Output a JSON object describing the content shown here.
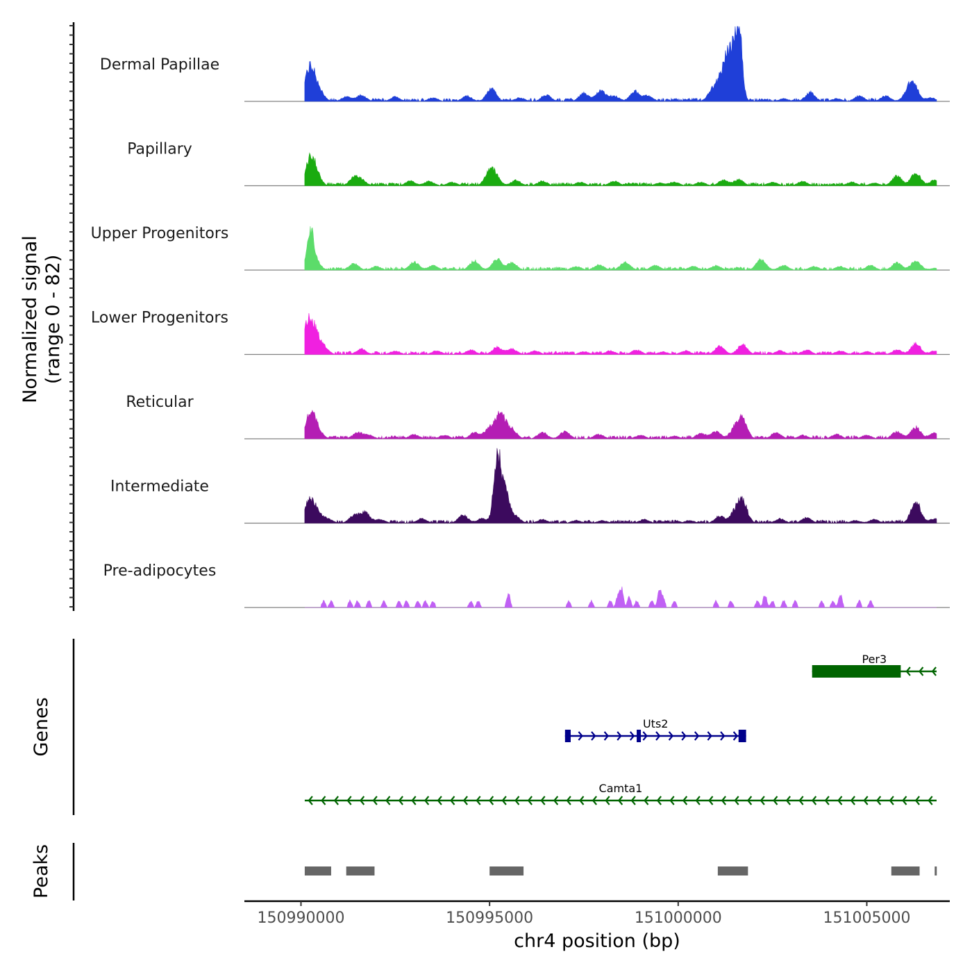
{
  "colors": {
    "Dermal Papillae": "#1f3fd8",
    "Papillary": "#1aab10",
    "Upper Progenitors": "#5cdc6a",
    "Lower Progenitors": "#f020e0",
    "Reticular": "#b41db4",
    "Intermediate": "#3c0a5e",
    "Pre-adipocytes": "#c060f4",
    "gene_plus": "#00008b",
    "gene_minus": "#006400",
    "peak": "#666666",
    "baseline": "#808080"
  },
  "chart_data": {
    "type": "area",
    "title": "",
    "xlabel": "chr4 position (bp)",
    "ylabel": "Normalized signal\n(range 0 - 82)",
    "ylabel_lines": [
      "Normalized signal",
      "(range 0 - 82)"
    ],
    "ylim": [
      0,
      82
    ],
    "xlim": [
      150988500,
      151007200
    ],
    "xticks": [
      150990000,
      150995000,
      151000000,
      151005000
    ],
    "xtick_labels": [
      "150990000",
      "150995000",
      "151000000",
      "151005000"
    ],
    "region_start": 150990100,
    "region_end": 151006850,
    "tracks": [
      {
        "name": "Dermal Papillae",
        "peaks": [
          [
            150990150,
            18
          ],
          [
            150990300,
            26
          ],
          [
            150990500,
            8
          ],
          [
            150991200,
            5
          ],
          [
            150991600,
            7
          ],
          [
            150992500,
            5
          ],
          [
            150993500,
            4
          ],
          [
            150994400,
            6
          ],
          [
            150995050,
            14
          ],
          [
            150995800,
            4
          ],
          [
            150996500,
            7
          ],
          [
            150997500,
            9
          ],
          [
            150997950,
            12
          ],
          [
            150998300,
            6
          ],
          [
            150998850,
            11
          ],
          [
            150999200,
            6
          ],
          [
            151000900,
            10
          ],
          [
            151001100,
            14
          ],
          [
            151001250,
            22
          ],
          [
            151001600,
            80
          ],
          [
            151001400,
            40
          ],
          [
            151002800,
            3
          ],
          [
            151003500,
            10
          ],
          [
            151004200,
            3
          ],
          [
            151004800,
            6
          ],
          [
            151005500,
            6
          ],
          [
            151006100,
            10
          ],
          [
            151006250,
            16
          ],
          [
            151006700,
            4
          ]
        ]
      },
      {
        "name": "Papillary",
        "peaks": [
          [
            150990250,
            28
          ],
          [
            150990400,
            10
          ],
          [
            150991400,
            8
          ],
          [
            150991600,
            6
          ],
          [
            150992900,
            5
          ],
          [
            150993400,
            5
          ],
          [
            150994000,
            4
          ],
          [
            150995000,
            14
          ],
          [
            150995150,
            9
          ],
          [
            150995700,
            6
          ],
          [
            150996400,
            5
          ],
          [
            150997400,
            4
          ],
          [
            150998300,
            5
          ],
          [
            150999500,
            3
          ],
          [
            150999900,
            4
          ],
          [
            151000600,
            4
          ],
          [
            151001200,
            6
          ],
          [
            151001600,
            7
          ],
          [
            151002500,
            4
          ],
          [
            151003300,
            5
          ],
          [
            151004600,
            4
          ],
          [
            151005200,
            3
          ],
          [
            151005800,
            11
          ],
          [
            151006300,
            14
          ],
          [
            151006800,
            6
          ]
        ]
      },
      {
        "name": "Upper Progenitors",
        "peaks": [
          [
            150990250,
            42
          ],
          [
            150990400,
            8
          ],
          [
            150991400,
            7
          ],
          [
            150992000,
            4
          ],
          [
            150993000,
            9
          ],
          [
            150993500,
            5
          ],
          [
            150994600,
            10
          ],
          [
            150995200,
            12
          ],
          [
            150995600,
            8
          ],
          [
            150997300,
            4
          ],
          [
            150997900,
            6
          ],
          [
            150998600,
            9
          ],
          [
            150999400,
            5
          ],
          [
            151000400,
            4
          ],
          [
            151001000,
            5
          ],
          [
            151002200,
            12
          ],
          [
            151002800,
            5
          ],
          [
            151003600,
            4
          ],
          [
            151004300,
            4
          ],
          [
            151005100,
            5
          ],
          [
            151005800,
            8
          ],
          [
            151006300,
            10
          ],
          [
            151006800,
            2
          ]
        ]
      },
      {
        "name": "Lower Progenitors",
        "peaks": [
          [
            150990150,
            30
          ],
          [
            150990350,
            24
          ],
          [
            150990600,
            8
          ],
          [
            150991600,
            6
          ],
          [
            150992500,
            4
          ],
          [
            150993600,
            4
          ],
          [
            150994500,
            5
          ],
          [
            150995200,
            8
          ],
          [
            150995600,
            6
          ],
          [
            150996200,
            4
          ],
          [
            150997500,
            3
          ],
          [
            150998200,
            4
          ],
          [
            150998900,
            5
          ],
          [
            150999600,
            3
          ],
          [
            151000200,
            4
          ],
          [
            151001100,
            9
          ],
          [
            151001700,
            11
          ],
          [
            151002700,
            4
          ],
          [
            151003400,
            5
          ],
          [
            151004300,
            4
          ],
          [
            151005000,
            3
          ],
          [
            151005800,
            5
          ],
          [
            151006300,
            12
          ],
          [
            151006800,
            4
          ]
        ]
      },
      {
        "name": "Reticular",
        "peaks": [
          [
            150990250,
            28
          ],
          [
            150990450,
            8
          ],
          [
            150991500,
            7
          ],
          [
            150991800,
            4
          ],
          [
            150993000,
            5
          ],
          [
            150993800,
            4
          ],
          [
            150994600,
            7
          ],
          [
            150995000,
            12
          ],
          [
            150995300,
            28
          ],
          [
            150995600,
            10
          ],
          [
            150996400,
            7
          ],
          [
            150997000,
            8
          ],
          [
            150997900,
            5
          ],
          [
            150999000,
            4
          ],
          [
            150999900,
            3
          ],
          [
            151000600,
            6
          ],
          [
            151001000,
            8
          ],
          [
            151001700,
            20
          ],
          [
            151001500,
            10
          ],
          [
            151002600,
            7
          ],
          [
            151003300,
            4
          ],
          [
            151004200,
            5
          ],
          [
            151005000,
            4
          ],
          [
            151005800,
            8
          ],
          [
            151006300,
            13
          ],
          [
            151006800,
            7
          ]
        ]
      },
      {
        "name": "Intermediate",
        "peaks": [
          [
            150990200,
            22
          ],
          [
            150990400,
            13
          ],
          [
            150990700,
            5
          ],
          [
            150991400,
            8
          ],
          [
            150991700,
            12
          ],
          [
            150992100,
            4
          ],
          [
            150993200,
            5
          ],
          [
            150994300,
            9
          ],
          [
            150994800,
            5
          ],
          [
            150995200,
            70
          ],
          [
            150995400,
            35
          ],
          [
            150995700,
            6
          ],
          [
            150996400,
            4
          ],
          [
            150997300,
            3
          ],
          [
            150998000,
            3
          ],
          [
            150999100,
            4
          ],
          [
            151000300,
            3
          ],
          [
            151001100,
            8
          ],
          [
            151001700,
            24
          ],
          [
            151001500,
            10
          ],
          [
            151002700,
            5
          ],
          [
            151003400,
            6
          ],
          [
            151004700,
            3
          ],
          [
            151005200,
            4
          ],
          [
            151006300,
            24
          ],
          [
            151006800,
            5
          ]
        ]
      },
      {
        "name": "Pre-adipocytes",
        "peaks": [
          [
            150990600,
            8
          ],
          [
            150990800,
            8
          ],
          [
            150991300,
            8
          ],
          [
            150991500,
            8
          ],
          [
            150991800,
            8
          ],
          [
            150992200,
            8
          ],
          [
            150992600,
            8
          ],
          [
            150992800,
            8
          ],
          [
            150993100,
            8
          ],
          [
            150993300,
            8
          ],
          [
            150993500,
            8
          ],
          [
            150994500,
            8
          ],
          [
            150994700,
            8
          ],
          [
            150995500,
            17
          ],
          [
            150997100,
            8
          ],
          [
            150997700,
            8
          ],
          [
            150998200,
            8
          ],
          [
            150998400,
            13
          ],
          [
            150998500,
            22
          ],
          [
            150998700,
            13
          ],
          [
            150998900,
            8
          ],
          [
            150999300,
            8
          ],
          [
            150999500,
            22
          ],
          [
            150999600,
            13
          ],
          [
            150999900,
            8
          ],
          [
            151001000,
            8
          ],
          [
            151001400,
            8
          ],
          [
            151002100,
            8
          ],
          [
            151002300,
            16
          ],
          [
            151002500,
            8
          ],
          [
            151002800,
            8
          ],
          [
            151003100,
            8
          ],
          [
            151003800,
            8
          ],
          [
            151004100,
            8
          ],
          [
            151004300,
            17
          ],
          [
            151004800,
            8
          ],
          [
            151005100,
            8
          ]
        ]
      }
    ],
    "genes": [
      {
        "name": "Per3",
        "strand": "-",
        "start": 151003550,
        "end": 151006850,
        "exons": [
          [
            151003550,
            151005900
          ]
        ]
      },
      {
        "name": "Uts2",
        "strand": "+",
        "start": 150997000,
        "end": 151001800,
        "exons": [
          [
            150997000,
            150997150
          ],
          [
            150998900,
            150999000
          ],
          [
            151001600,
            151001800
          ]
        ]
      },
      {
        "name": "Camta1",
        "strand": "-",
        "start": 150990100,
        "end": 151006850,
        "exons": []
      }
    ],
    "panel_labels": [
      "Genes",
      "Peaks"
    ],
    "peak_regions": [
      [
        150990100,
        150990800
      ],
      [
        150991200,
        150991950
      ],
      [
        150995000,
        150995900
      ],
      [
        151001050,
        151001850
      ],
      [
        151005650,
        151006400
      ],
      [
        151006800,
        151006850
      ]
    ]
  }
}
